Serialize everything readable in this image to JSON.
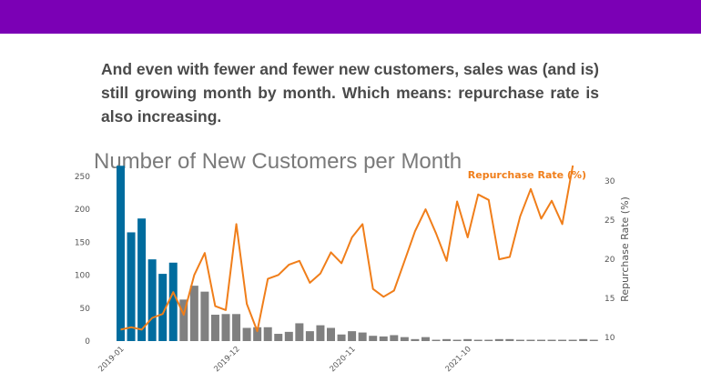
{
  "header": {
    "bar_color": "#7b00b5"
  },
  "caption": {
    "text": "And even with fewer and fewer new customers, sales was (and is) still growing month by month. Which means: repurchase rate is also increasing."
  },
  "chart_data": {
    "type": "bar+line",
    "title": "Number of New Customers per Month",
    "x_tick_labels": [
      "2019-01",
      "2019-12",
      "2020-11",
      "2021-10"
    ],
    "x_tick_indices": [
      0,
      11,
      22,
      33
    ],
    "left_axis": {
      "ylim": [
        0,
        265
      ],
      "ticks": [
        0,
        50,
        100,
        150,
        200,
        250
      ]
    },
    "right_axis": {
      "label": "Repurchase Rate (%)",
      "ylim": [
        10,
        32
      ],
      "ticks": [
        10,
        15,
        20,
        25,
        30
      ]
    },
    "bars": {
      "values": [
        266,
        165,
        186,
        124,
        102,
        119,
        63,
        84,
        75,
        40,
        41,
        41,
        20,
        21,
        21,
        11,
        14,
        27,
        15,
        24,
        20,
        10,
        15,
        13,
        8,
        7,
        9,
        6,
        3,
        6,
        2,
        3,
        2,
        3,
        2,
        2,
        3,
        3,
        2,
        2,
        2,
        2,
        2,
        2,
        3,
        2
      ],
      "highlight_count": 6,
      "highlight_color": "#006c9e",
      "other_color": "#808080"
    },
    "line": {
      "name": "Repurchase Rate (%)",
      "color": "#f07e1a",
      "values": [
        11.0,
        11.3,
        11.0,
        12.5,
        13.0,
        15.8,
        12.9,
        18.0,
        20.8,
        14.0,
        13.5,
        24.5,
        14.3,
        10.8,
        17.5,
        18.0,
        19.3,
        19.8,
        17.0,
        18.2,
        20.9,
        19.5,
        22.8,
        24.5,
        16.2,
        15.2,
        16.0,
        19.8,
        23.6,
        26.4,
        23.3,
        19.8,
        27.4,
        22.8,
        28.3,
        27.6,
        20.0,
        20.3,
        25.5,
        29.0,
        25.2,
        27.5,
        24.5,
        32.0
      ]
    },
    "grid": false
  }
}
